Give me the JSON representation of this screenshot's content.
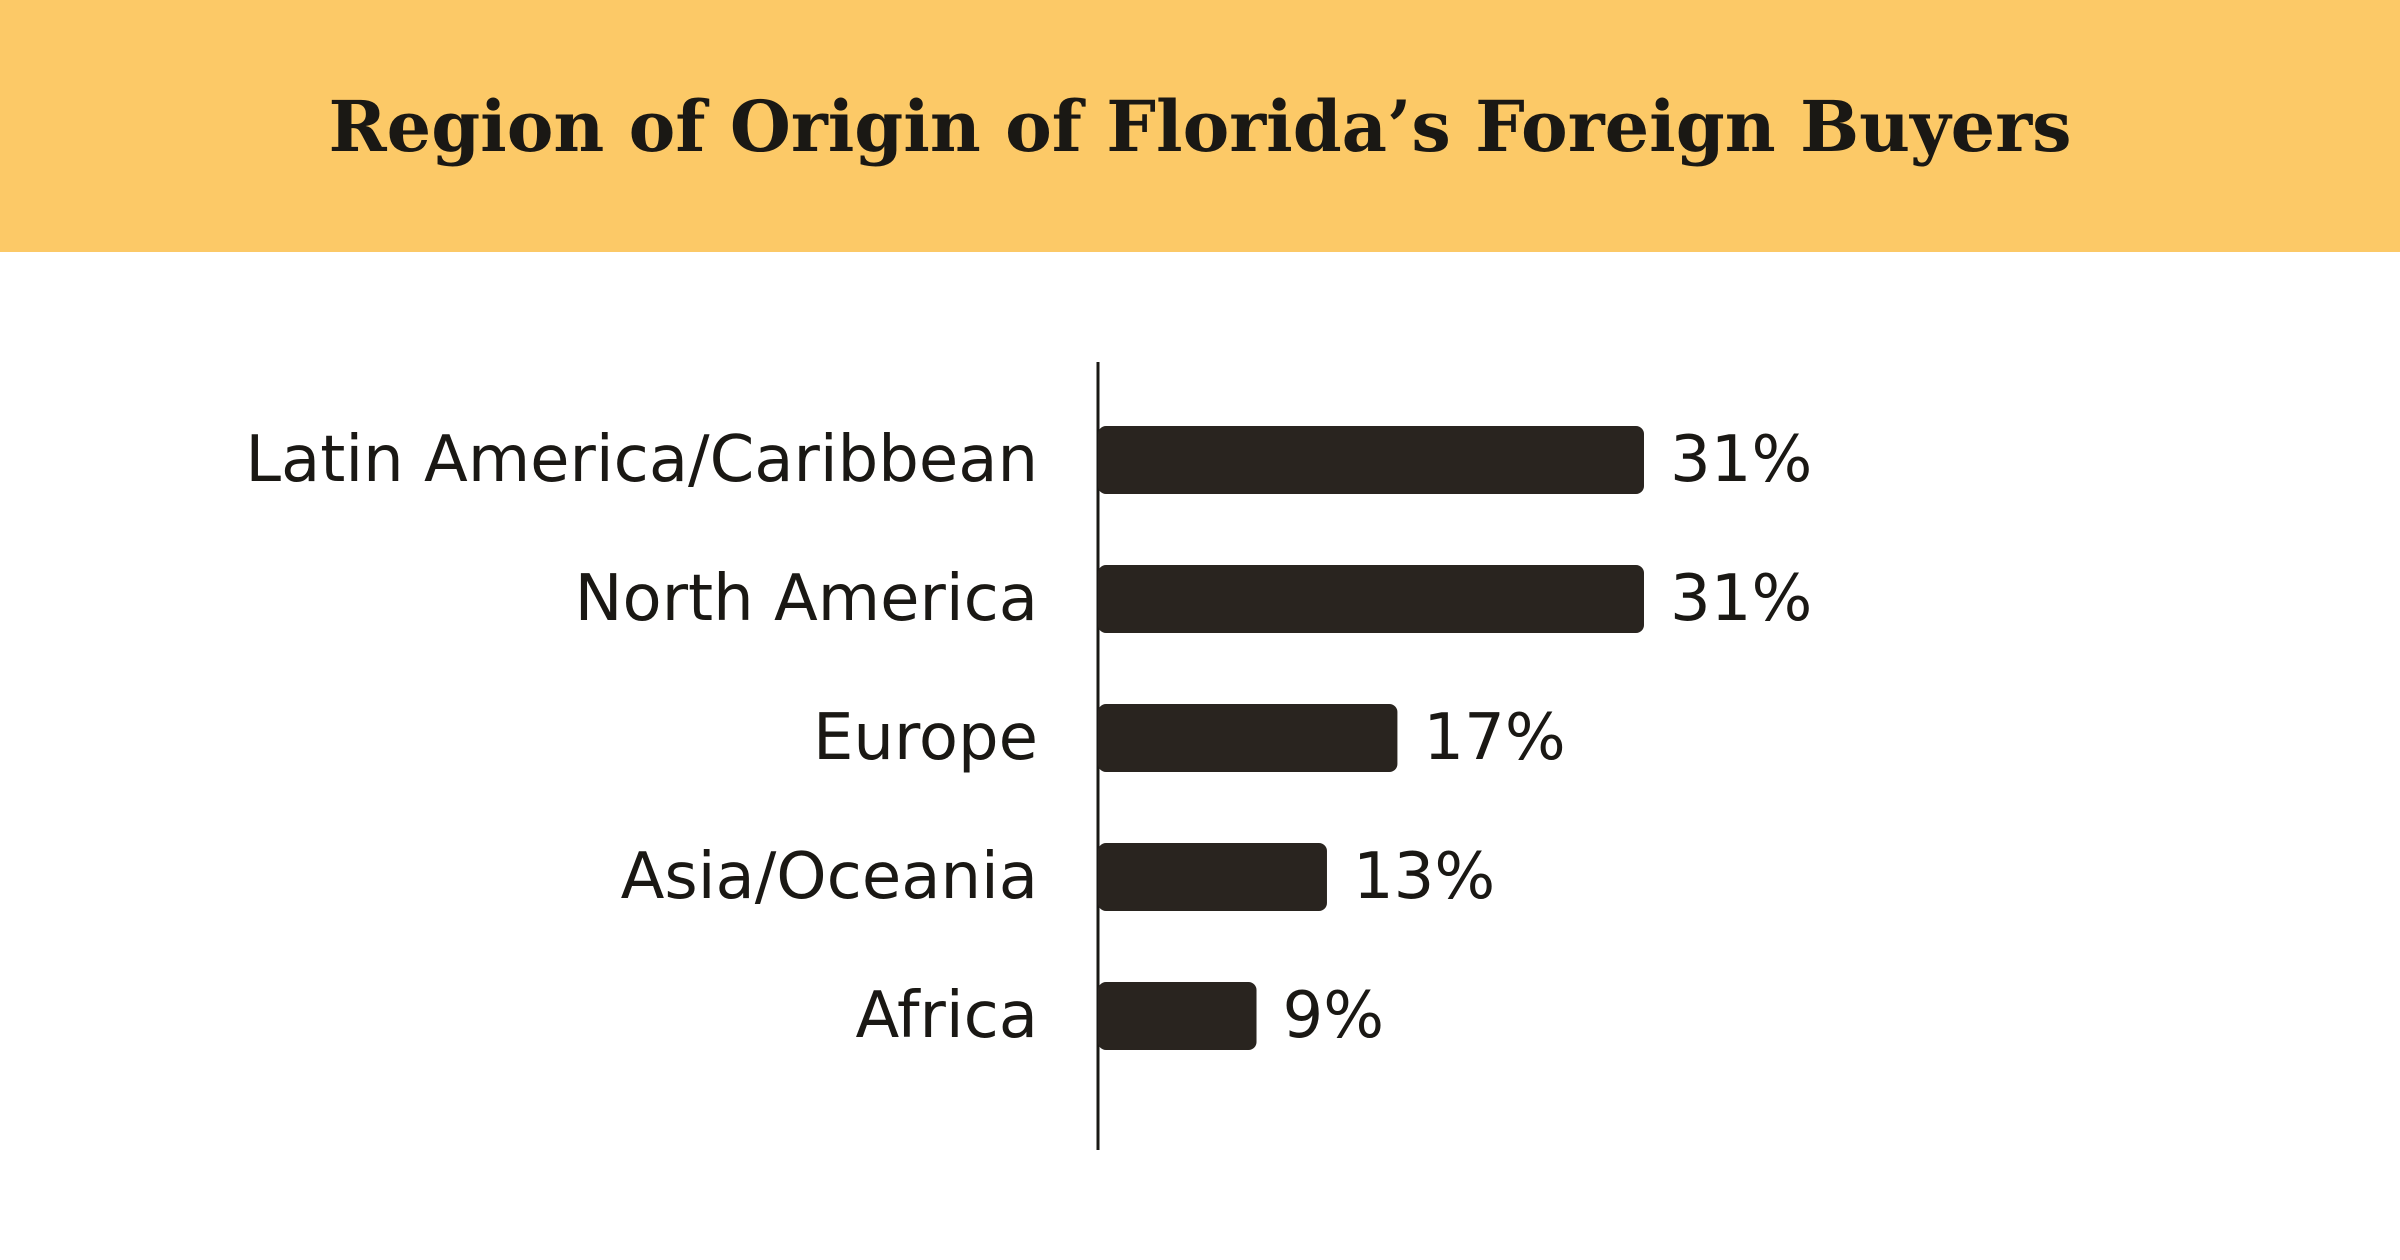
{
  "header": {
    "title": "Region of Origin of Florida’s Foreign Buyers"
  },
  "colors": {
    "banner": "#fcc967",
    "bar": "#29241f",
    "text": "#1a1814",
    "background": "#ffffff"
  },
  "chart_data": {
    "type": "bar",
    "orientation": "horizontal",
    "title": "Region of Origin of Florida’s Foreign Buyers",
    "categories": [
      "Latin America/Caribbean",
      "North America",
      "Europe",
      "Asia/Oceania",
      "Africa"
    ],
    "values": [
      31,
      31,
      17,
      13,
      9
    ],
    "value_labels": [
      "31%",
      "31%",
      "17%",
      "13%",
      "9%"
    ],
    "unit": "%",
    "xlim": [
      0,
      31
    ],
    "xlabel": "",
    "ylabel": "",
    "grid": false,
    "legend": "none"
  }
}
